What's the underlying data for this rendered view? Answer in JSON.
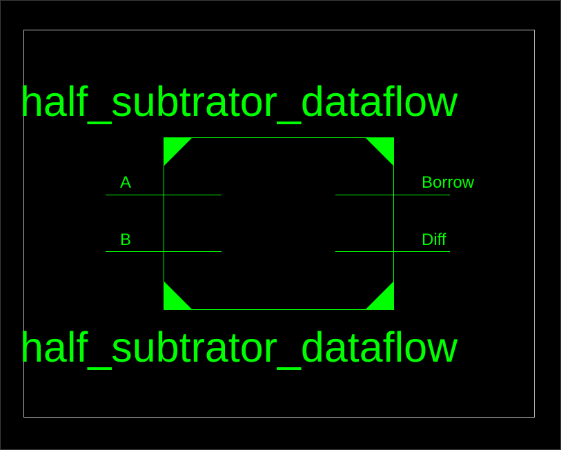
{
  "diagram": {
    "module_name_top": "half_subtrator_dataflow",
    "module_name_bottom": "half_subtrator_dataflow",
    "inputs": [
      "A",
      "B"
    ],
    "outputs": [
      "Borrow",
      "Diff"
    ],
    "colors": {
      "background": "#000000",
      "frame": "#BFBFBF",
      "symbol": "#00FF00"
    }
  }
}
